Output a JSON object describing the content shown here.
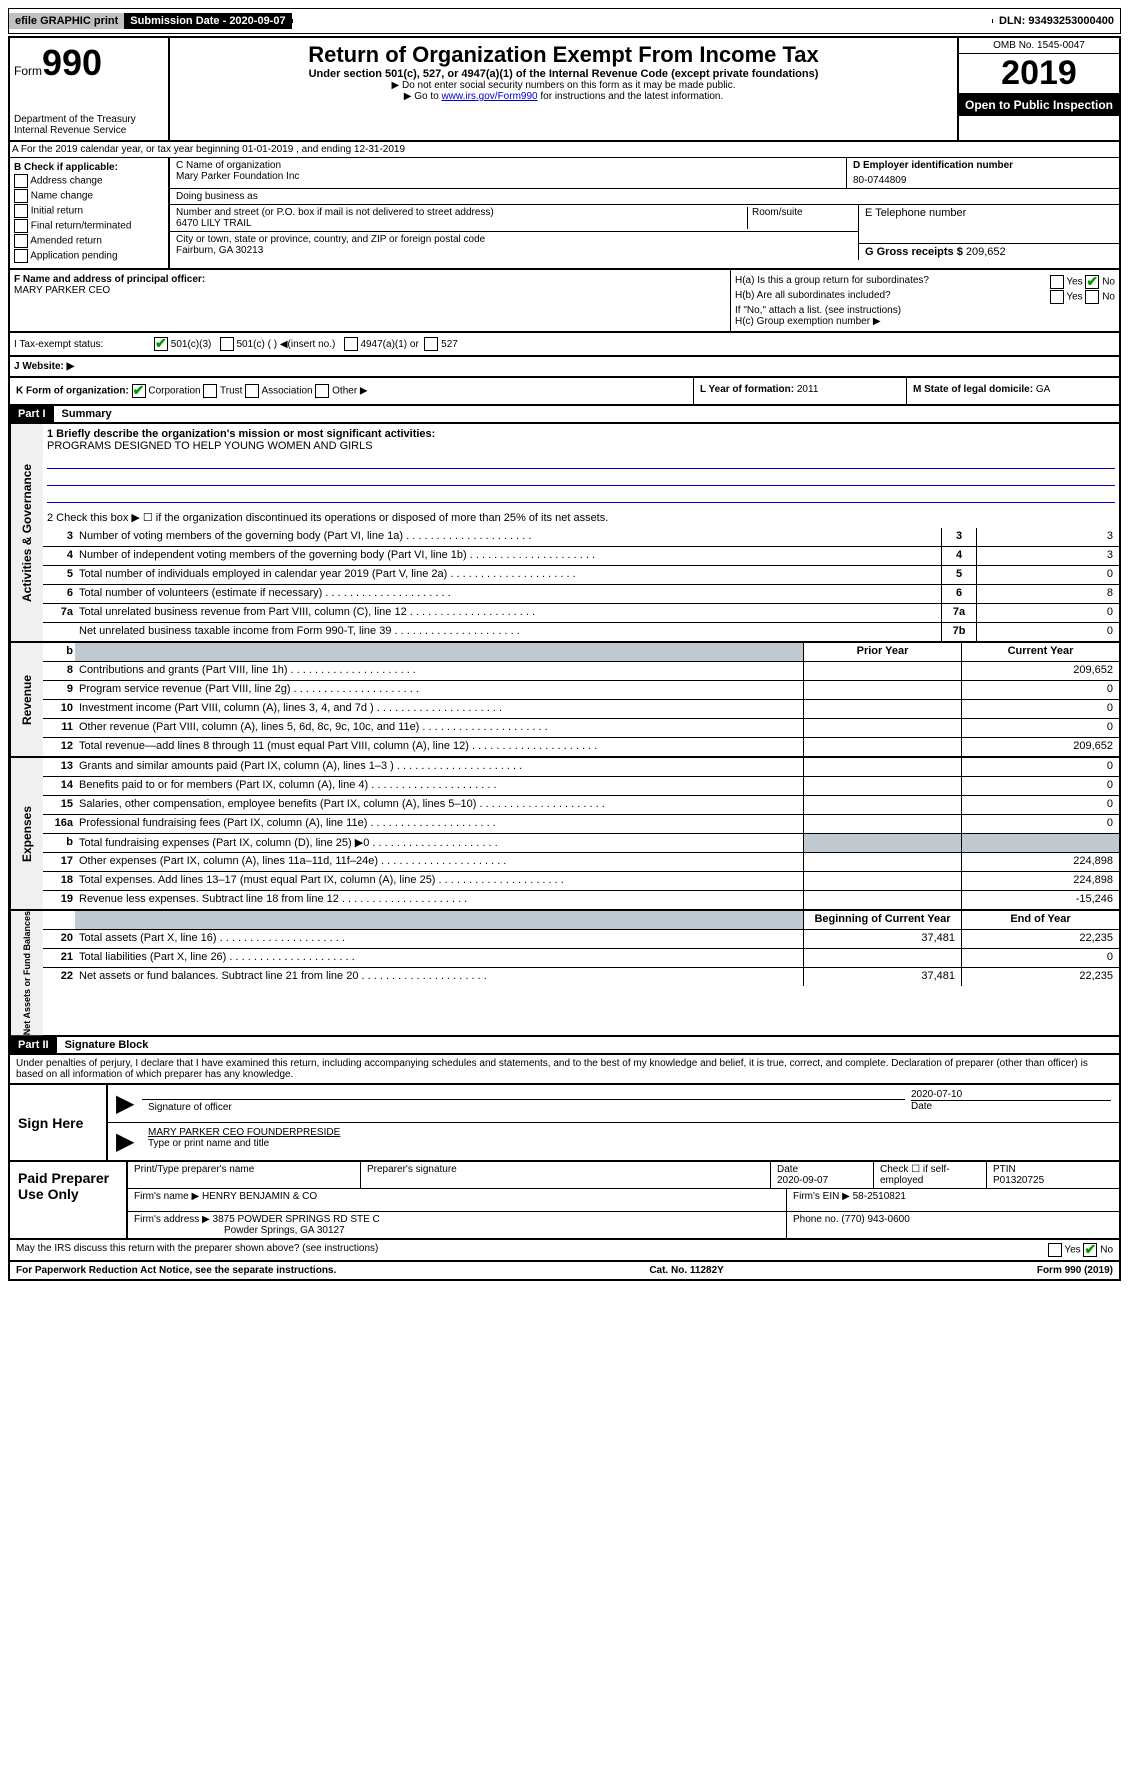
{
  "topbar": {
    "efile": "efile GRAPHIC print",
    "submission_label": "Submission Date - 2020-09-07",
    "dln": "DLN: 93493253000400"
  },
  "header": {
    "form_word": "Form",
    "form_num": "990",
    "dept": "Department of the Treasury\nInternal Revenue Service",
    "title": "Return of Organization Exempt From Income Tax",
    "sub": "Under section 501(c), 527, or 4947(a)(1) of the Internal Revenue Code (except private foundations)",
    "note1": "▶ Do not enter social security numbers on this form as it may be made public.",
    "note2_pre": "▶ Go to ",
    "note2_link": "www.irs.gov/Form990",
    "note2_post": " for instructions and the latest information.",
    "omb": "OMB No. 1545-0047",
    "year": "2019",
    "open": "Open to Public Inspection"
  },
  "rowA": "A For the 2019 calendar year, or tax year beginning 01-01-2019  , and ending 12-31-2019",
  "B": {
    "label": "B Check if applicable:",
    "items": [
      "Address change",
      "Name change",
      "Initial return",
      "Final return/terminated",
      "Amended return",
      "Application pending"
    ]
  },
  "C": {
    "name_label": "C Name of organization",
    "name": "Mary Parker Foundation Inc",
    "dba_label": "Doing business as",
    "dba": "",
    "addr_label": "Number and street (or P.O. box if mail is not delivered to street address)",
    "addr": "6470 LILY TRAIL",
    "room_label": "Room/suite",
    "city_label": "City or town, state or province, country, and ZIP or foreign postal code",
    "city": "Fairburn, GA  30213"
  },
  "D": {
    "label": "D Employer identification number",
    "value": "80-0744809"
  },
  "E": {
    "label": "E Telephone number",
    "value": ""
  },
  "G": {
    "label": "G Gross receipts $ ",
    "value": "209,652"
  },
  "F": {
    "label": "F  Name and address of principal officer:",
    "value": "MARY PARKER CEO"
  },
  "H": {
    "a_label": "H(a)  Is this a group return for subordinates?",
    "a_yes": "Yes",
    "a_no": "No",
    "b_label": "H(b)  Are all subordinates included?",
    "b_note": "If \"No,\" attach a list. (see instructions)",
    "c_label": "H(c)  Group exemption number ▶"
  },
  "I": {
    "label": "I   Tax-exempt status:",
    "opt1": "501(c)(3)",
    "opt2": "501(c) (  ) ◀(insert no.)",
    "opt3": "4947(a)(1) or",
    "opt4": "527"
  },
  "J": {
    "label": "J   Website: ▶",
    "value": ""
  },
  "K": {
    "label": "K Form of organization:",
    "opts": [
      "Corporation",
      "Trust",
      "Association",
      "Other ▶"
    ]
  },
  "L": {
    "label": "L Year of formation: ",
    "value": "2011"
  },
  "M": {
    "label": "M State of legal domicile: ",
    "value": "GA"
  },
  "part1": {
    "header": "Part I",
    "title": "Summary"
  },
  "summary": {
    "line1_label": "1  Briefly describe the organization's mission or most significant activities:",
    "mission": "PROGRAMS DESIGNED TO HELP YOUNG WOMEN AND GIRLS",
    "line2": "2   Check this box ▶ ☐  if the organization discontinued its operations or disposed of more than 25% of its net assets.",
    "rows_governance": [
      {
        "n": "3",
        "d": "Number of voting members of the governing body (Part VI, line 1a)",
        "box": "3",
        "v": "3"
      },
      {
        "n": "4",
        "d": "Number of independent voting members of the governing body (Part VI, line 1b)",
        "box": "4",
        "v": "3"
      },
      {
        "n": "5",
        "d": "Total number of individuals employed in calendar year 2019 (Part V, line 2a)",
        "box": "5",
        "v": "0"
      },
      {
        "n": "6",
        "d": "Total number of volunteers (estimate if necessary)",
        "box": "6",
        "v": "8"
      },
      {
        "n": "7a",
        "d": "Total unrelated business revenue from Part VIII, column (C), line 12",
        "box": "7a",
        "v": "0"
      },
      {
        "n": "",
        "d": "Net unrelated business taxable income from Form 990-T, line 39",
        "box": "7b",
        "v": "0"
      }
    ],
    "col_headers": {
      "b": "b",
      "prior": "Prior Year",
      "current": "Current Year"
    },
    "rows_revenue": [
      {
        "n": "8",
        "d": "Contributions and grants (Part VIII, line 1h)",
        "p": "",
        "c": "209,652"
      },
      {
        "n": "9",
        "d": "Program service revenue (Part VIII, line 2g)",
        "p": "",
        "c": "0"
      },
      {
        "n": "10",
        "d": "Investment income (Part VIII, column (A), lines 3, 4, and 7d )",
        "p": "",
        "c": "0"
      },
      {
        "n": "11",
        "d": "Other revenue (Part VIII, column (A), lines 5, 6d, 8c, 9c, 10c, and 11e)",
        "p": "",
        "c": "0"
      },
      {
        "n": "12",
        "d": "Total revenue—add lines 8 through 11 (must equal Part VIII, column (A), line 12)",
        "p": "",
        "c": "209,652"
      }
    ],
    "rows_expenses": [
      {
        "n": "13",
        "d": "Grants and similar amounts paid (Part IX, column (A), lines 1–3 )",
        "p": "",
        "c": "0"
      },
      {
        "n": "14",
        "d": "Benefits paid to or for members (Part IX, column (A), line 4)",
        "p": "",
        "c": "0"
      },
      {
        "n": "15",
        "d": "Salaries, other compensation, employee benefits (Part IX, column (A), lines 5–10)",
        "p": "",
        "c": "0"
      },
      {
        "n": "16a",
        "d": "Professional fundraising fees (Part IX, column (A), line 11e)",
        "p": "",
        "c": "0"
      },
      {
        "n": "b",
        "d": "Total fundraising expenses (Part IX, column (D), line 25) ▶0",
        "p": "shaded",
        "c": "shaded"
      },
      {
        "n": "17",
        "d": "Other expenses (Part IX, column (A), lines 11a–11d, 11f–24e)",
        "p": "",
        "c": "224,898"
      },
      {
        "n": "18",
        "d": "Total expenses. Add lines 13–17 (must equal Part IX, column (A), line 25)",
        "p": "",
        "c": "224,898"
      },
      {
        "n": "19",
        "d": "Revenue less expenses. Subtract line 18 from line 12",
        "p": "",
        "c": "-15,246"
      }
    ],
    "col_headers2": {
      "b": "",
      "begin": "Beginning of Current Year",
      "end": "End of Year"
    },
    "rows_net": [
      {
        "n": "20",
        "d": "Total assets (Part X, line 16)",
        "p": "37,481",
        "c": "22,235"
      },
      {
        "n": "21",
        "d": "Total liabilities (Part X, line 26)",
        "p": "",
        "c": "0"
      },
      {
        "n": "22",
        "d": "Net assets or fund balances. Subtract line 21 from line 20",
        "p": "37,481",
        "c": "22,235"
      }
    ],
    "side_labels": {
      "gov": "Activities & Governance",
      "rev": "Revenue",
      "exp": "Expenses",
      "net": "Net Assets or Fund Balances"
    }
  },
  "part2": {
    "header": "Part II",
    "title": "Signature Block"
  },
  "perjury": "Under penalties of perjury, I declare that I have examined this return, including accompanying schedules and statements, and to the best of my knowledge and belief, it is true, correct, and complete. Declaration of preparer (other than officer) is based on all information of which preparer has any knowledge.",
  "sign": {
    "label": "Sign Here",
    "sig_of_officer": "Signature of officer",
    "date_val": "2020-07-10",
    "date_label": "Date",
    "name": "MARY PARKER CEO FOUNDERPRESIDE",
    "name_label": "Type or print name and title"
  },
  "paid": {
    "label": "Paid Preparer Use Only",
    "h1": "Print/Type preparer's name",
    "h2": "Preparer's signature",
    "h3_label": "Date",
    "h3_val": "2020-09-07",
    "h4_label": "Check ☐ if self-employed",
    "h5_label": "PTIN",
    "h5_val": "P01320725",
    "firm_name_label": "Firm's name   ▶",
    "firm_name": "HENRY BENJAMIN & CO",
    "firm_ein_label": "Firm's EIN ▶",
    "firm_ein": "58-2510821",
    "firm_addr_label": "Firm's address ▶",
    "firm_addr": "3875 POWDER SPRINGS RD STE C",
    "firm_city": "Powder Springs, GA  30127",
    "phone_label": "Phone no. ",
    "phone": "(770) 943-0600"
  },
  "irs_discuss": "May the IRS discuss this return with the preparer shown above? (see instructions)",
  "footer": {
    "notice": "For Paperwork Reduction Act Notice, see the separate instructions.",
    "cat": "Cat. No. 11282Y",
    "form": "Form 990 (2019)"
  }
}
